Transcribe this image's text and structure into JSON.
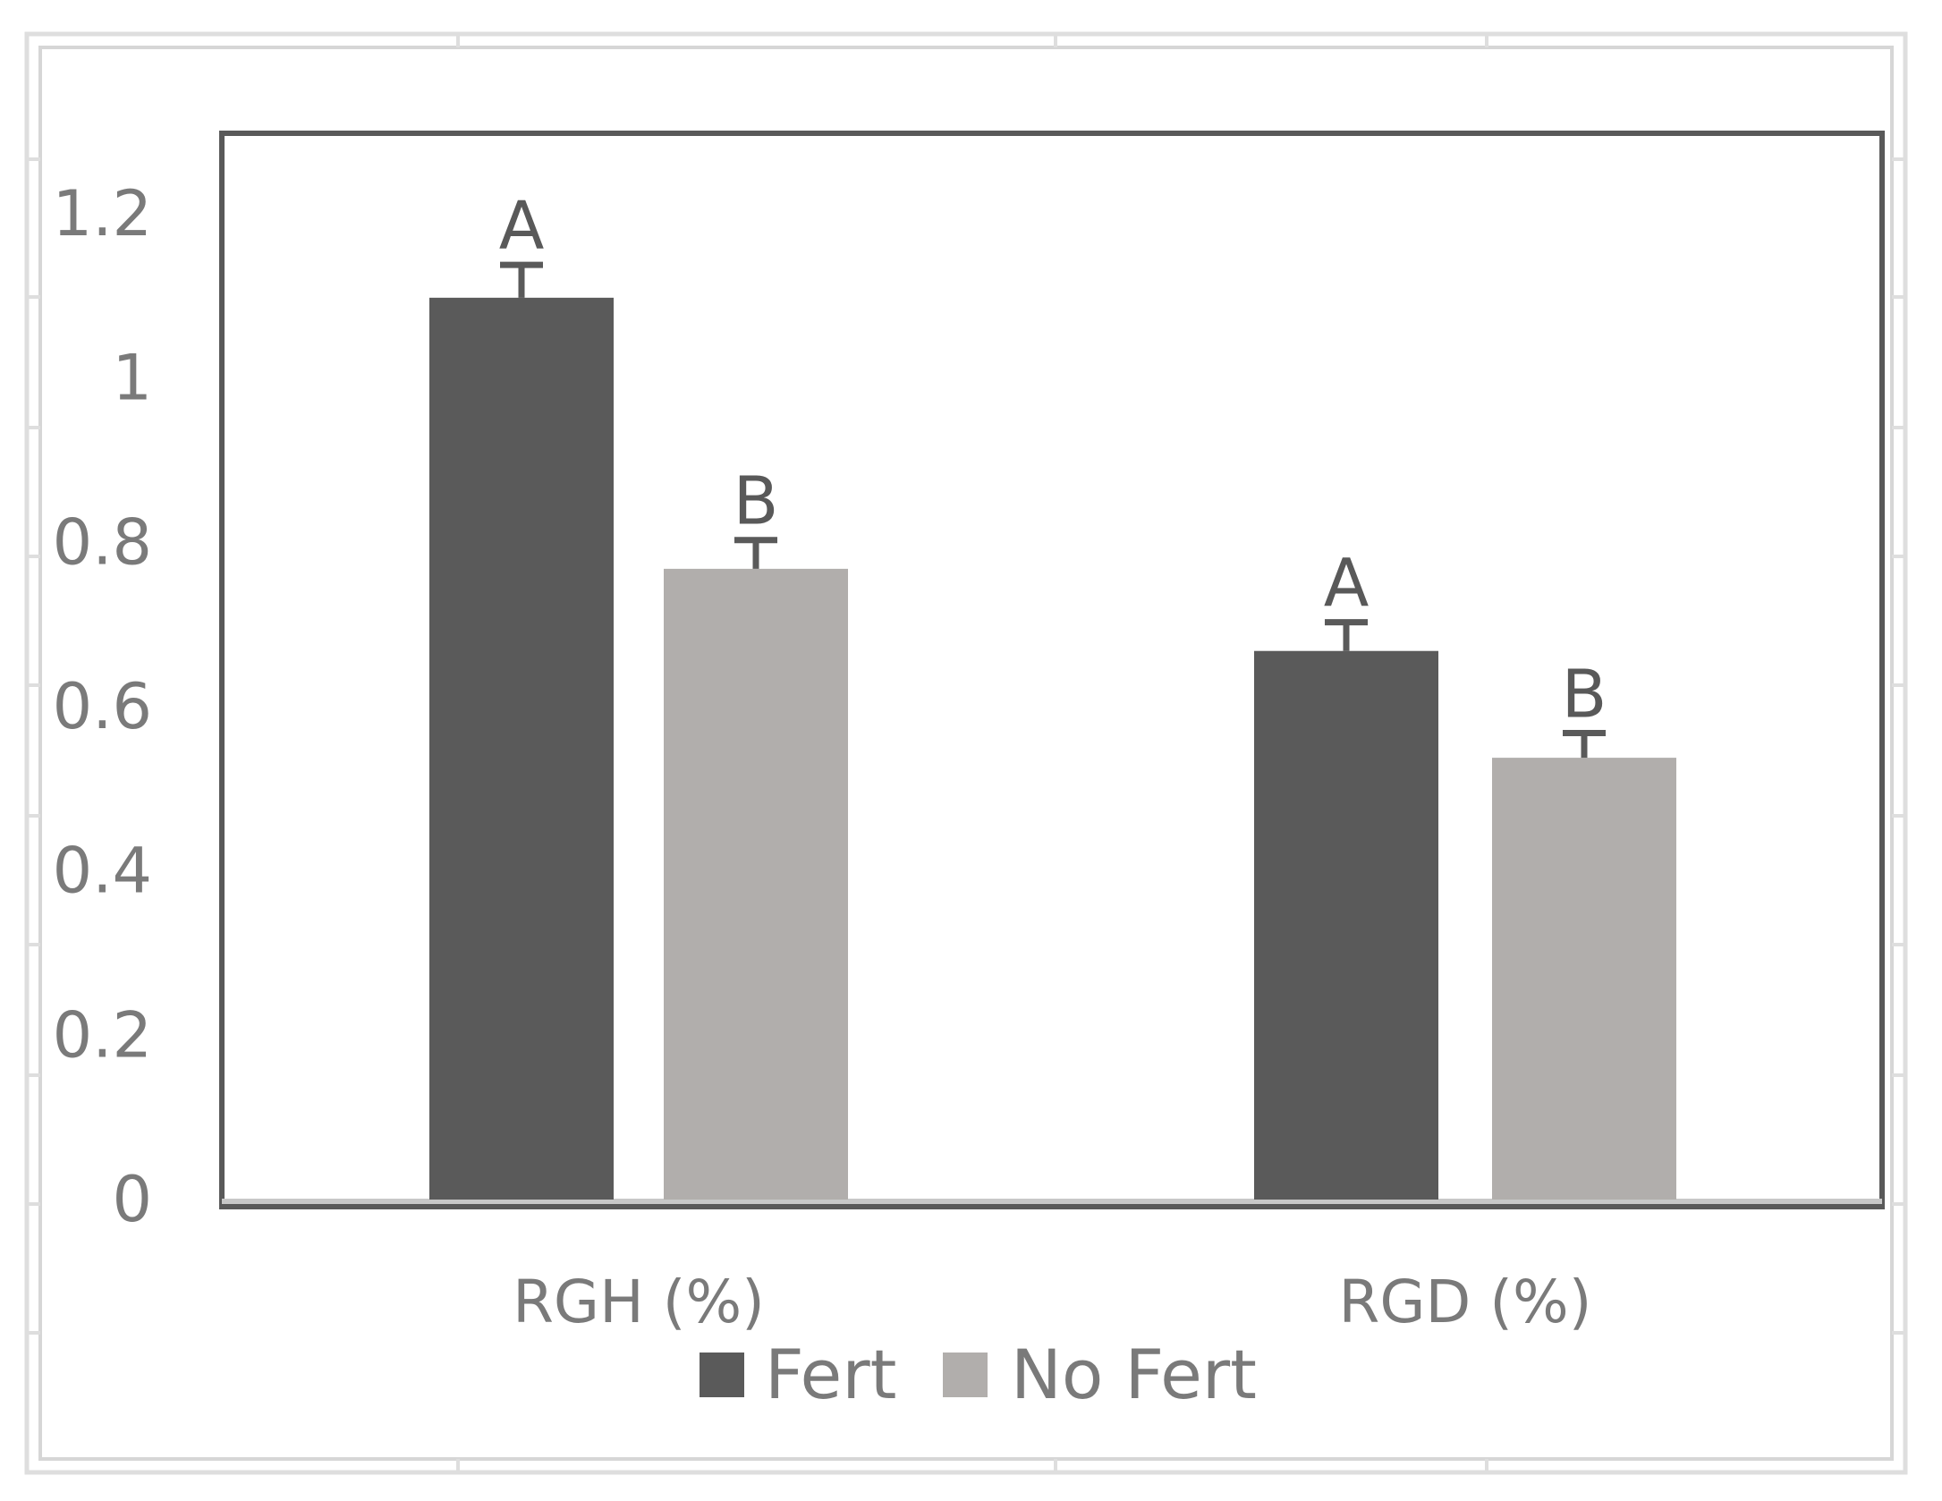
{
  "chart_data": {
    "type": "bar",
    "title": "",
    "xlabel": "",
    "ylabel": "",
    "categories": [
      "RGH (%)",
      "RGD (%)"
    ],
    "series": [
      {
        "name": "Fert",
        "color": "#5a5a5a",
        "values": [
          1.1,
          0.67
        ],
        "errors": [
          0.04,
          0.035
        ],
        "letters": [
          "A",
          "A"
        ]
      },
      {
        "name": "No Fert",
        "color": "#b1aeac",
        "values": [
          0.77,
          0.54
        ],
        "errors": [
          0.035,
          0.03
        ],
        "letters": [
          "B",
          "B"
        ]
      }
    ],
    "ylim": [
      0,
      1.3
    ],
    "yticks": [
      "0",
      "0.2",
      "0.4",
      "0.6",
      "0.8",
      "1",
      "1.2"
    ],
    "grid": false,
    "legend": "bottom-center"
  }
}
